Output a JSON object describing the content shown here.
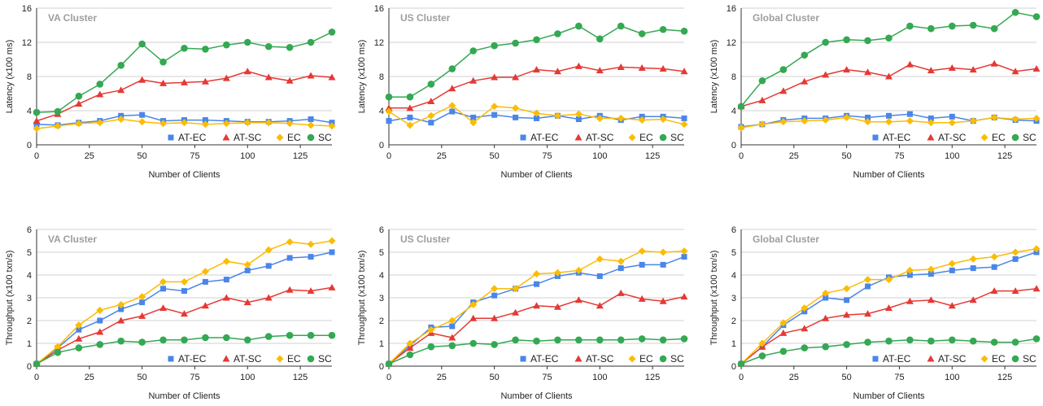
{
  "colors": {
    "AT-EC": "#4a86e8",
    "AT-SC": "#e53935",
    "EC": "#fbbc04",
    "SC": "#34a853"
  },
  "chart_data": [
    {
      "type": "line",
      "title": "VA Cluster",
      "xlabel": "Number of Clients",
      "ylabel": "Latency (x100 ms)",
      "xlim": [
        0,
        140
      ],
      "ylim": [
        0,
        16
      ],
      "xticks": [
        0,
        25,
        50,
        75,
        100,
        125
      ],
      "yticks": [
        0,
        4,
        8,
        12,
        16
      ],
      "legend": "bottom-right",
      "x": [
        0,
        10,
        20,
        30,
        40,
        50,
        60,
        70,
        80,
        90,
        100,
        110,
        120,
        130,
        140
      ],
      "series": [
        {
          "name": "AT-EC",
          "marker": "square",
          "values": [
            2.4,
            2.3,
            2.6,
            2.8,
            3.4,
            3.5,
            2.8,
            2.9,
            2.9,
            2.8,
            2.7,
            2.7,
            2.8,
            3.0,
            2.6
          ]
        },
        {
          "name": "AT-SC",
          "marker": "triangle",
          "values": [
            2.8,
            3.6,
            4.8,
            5.9,
            6.4,
            7.6,
            7.2,
            7.3,
            7.4,
            7.8,
            8.6,
            7.9,
            7.5,
            8.1,
            7.9
          ]
        },
        {
          "name": "EC",
          "marker": "diamond",
          "values": [
            1.9,
            2.2,
            2.5,
            2.6,
            3.0,
            2.7,
            2.5,
            2.6,
            2.4,
            2.5,
            2.6,
            2.6,
            2.5,
            2.3,
            2.2
          ]
        },
        {
          "name": "SC",
          "marker": "circle",
          "values": [
            3.8,
            3.9,
            5.7,
            7.1,
            9.3,
            11.8,
            9.7,
            11.3,
            11.2,
            11.7,
            12.0,
            11.5,
            11.4,
            12.0,
            13.2
          ]
        }
      ]
    },
    {
      "type": "line",
      "title": "US Cluster",
      "xlabel": "Number of Clients",
      "ylabel": "Latency (x100 ms)",
      "xlim": [
        0,
        140
      ],
      "ylim": [
        0,
        16
      ],
      "xticks": [
        0,
        25,
        50,
        75,
        100,
        125
      ],
      "yticks": [
        0,
        4,
        8,
        12,
        16
      ],
      "legend": "bottom-right",
      "x": [
        0,
        10,
        20,
        30,
        40,
        50,
        60,
        70,
        80,
        90,
        100,
        110,
        120,
        130,
        140
      ],
      "series": [
        {
          "name": "AT-EC",
          "marker": "square",
          "values": [
            2.8,
            3.2,
            2.6,
            3.9,
            3.2,
            3.5,
            3.2,
            3.1,
            3.4,
            3.0,
            3.4,
            2.9,
            3.3,
            3.3,
            3.1
          ]
        },
        {
          "name": "AT-SC",
          "marker": "triangle",
          "values": [
            4.3,
            4.3,
            5.1,
            6.6,
            7.5,
            7.9,
            7.9,
            8.8,
            8.6,
            9.2,
            8.7,
            9.1,
            9.0,
            8.9,
            8.6
          ]
        },
        {
          "name": "EC",
          "marker": "diamond",
          "values": [
            3.9,
            2.3,
            3.4,
            4.6,
            2.6,
            4.5,
            4.3,
            3.7,
            3.4,
            3.6,
            3.1,
            3.1,
            2.9,
            3.0,
            2.4
          ]
        },
        {
          "name": "SC",
          "marker": "circle",
          "values": [
            5.6,
            5.6,
            7.1,
            8.9,
            11.0,
            11.6,
            11.9,
            12.3,
            13.0,
            13.9,
            12.4,
            13.9,
            13.0,
            13.5,
            13.3
          ]
        }
      ]
    },
    {
      "type": "line",
      "title": "Global Cluster",
      "xlabel": "Number of Clients",
      "ylabel": "Latency (x100 ms)",
      "xlim": [
        0,
        140
      ],
      "ylim": [
        0,
        16
      ],
      "xticks": [
        0,
        25,
        50,
        75,
        100,
        125
      ],
      "yticks": [
        0,
        4,
        8,
        12,
        16
      ],
      "legend": "bottom-right",
      "x": [
        0,
        10,
        20,
        30,
        40,
        50,
        60,
        70,
        80,
        90,
        100,
        110,
        120,
        130,
        140
      ],
      "series": [
        {
          "name": "AT-EC",
          "marker": "square",
          "values": [
            2.1,
            2.4,
            2.9,
            3.1,
            3.1,
            3.4,
            3.2,
            3.4,
            3.6,
            3.1,
            3.3,
            2.8,
            3.2,
            2.9,
            2.8
          ]
        },
        {
          "name": "AT-SC",
          "marker": "triangle",
          "values": [
            4.5,
            5.2,
            6.3,
            7.4,
            8.2,
            8.8,
            8.5,
            8.0,
            9.4,
            8.7,
            9.0,
            8.8,
            9.5,
            8.6,
            8.9
          ]
        },
        {
          "name": "EC",
          "marker": "diamond",
          "values": [
            2.0,
            2.4,
            2.7,
            2.8,
            2.9,
            3.2,
            2.7,
            2.7,
            2.8,
            2.6,
            2.6,
            2.8,
            3.2,
            3.0,
            3.1
          ]
        },
        {
          "name": "SC",
          "marker": "circle",
          "values": [
            4.5,
            7.5,
            8.8,
            10.5,
            12.0,
            12.3,
            12.2,
            12.5,
            13.9,
            13.6,
            13.9,
            14.0,
            13.6,
            15.5,
            15.0
          ]
        }
      ]
    },
    {
      "type": "line",
      "title": "VA Cluster",
      "xlabel": "Number of Clients",
      "ylabel": "Throughput (x100 txn/s)",
      "xlim": [
        0,
        140
      ],
      "ylim": [
        0,
        6
      ],
      "xticks": [
        0,
        25,
        50,
        75,
        100,
        125
      ],
      "yticks": [
        0,
        1,
        2,
        3,
        4,
        5,
        6
      ],
      "legend": "bottom-right",
      "x": [
        0,
        10,
        20,
        30,
        40,
        50,
        60,
        70,
        80,
        90,
        100,
        110,
        120,
        130,
        140
      ],
      "series": [
        {
          "name": "AT-EC",
          "marker": "square",
          "values": [
            0.1,
            0.8,
            1.6,
            2.0,
            2.5,
            2.8,
            3.4,
            3.3,
            3.7,
            3.8,
            4.2,
            4.4,
            4.75,
            4.8,
            5.0
          ]
        },
        {
          "name": "AT-SC",
          "marker": "triangle",
          "values": [
            0.1,
            0.7,
            1.2,
            1.5,
            2.0,
            2.2,
            2.55,
            2.3,
            2.65,
            3.0,
            2.8,
            3.0,
            3.35,
            3.3,
            3.45
          ]
        },
        {
          "name": "EC",
          "marker": "diamond",
          "values": [
            0.1,
            0.85,
            1.8,
            2.45,
            2.7,
            3.05,
            3.7,
            3.7,
            4.15,
            4.6,
            4.45,
            5.1,
            5.45,
            5.35,
            5.5
          ]
        },
        {
          "name": "SC",
          "marker": "circle",
          "values": [
            0.1,
            0.6,
            0.8,
            0.95,
            1.1,
            1.05,
            1.15,
            1.15,
            1.25,
            1.25,
            1.15,
            1.3,
            1.35,
            1.35,
            1.35
          ]
        }
      ]
    },
    {
      "type": "line",
      "title": "US Cluster",
      "xlabel": "Number of Clients",
      "ylabel": "Throughput (x100 txn/s)",
      "xlim": [
        0,
        140
      ],
      "ylim": [
        0,
        6
      ],
      "xticks": [
        0,
        25,
        50,
        75,
        100,
        125
      ],
      "yticks": [
        0,
        1,
        2,
        3,
        4,
        5,
        6
      ],
      "legend": "bottom-right",
      "x": [
        0,
        10,
        20,
        30,
        40,
        50,
        60,
        70,
        80,
        90,
        100,
        110,
        120,
        130,
        140
      ],
      "series": [
        {
          "name": "AT-EC",
          "marker": "square",
          "values": [
            0.1,
            0.9,
            1.7,
            1.75,
            2.8,
            3.1,
            3.4,
            3.6,
            3.95,
            4.1,
            3.95,
            4.3,
            4.45,
            4.45,
            4.8
          ]
        },
        {
          "name": "AT-SC",
          "marker": "triangle",
          "values": [
            0.1,
            0.8,
            1.45,
            1.25,
            2.1,
            2.1,
            2.35,
            2.65,
            2.6,
            2.9,
            2.65,
            3.2,
            2.95,
            2.85,
            3.05
          ]
        },
        {
          "name": "EC",
          "marker": "diamond",
          "values": [
            0.1,
            1.0,
            1.6,
            2.0,
            2.7,
            3.4,
            3.4,
            4.05,
            4.1,
            4.2,
            4.7,
            4.6,
            5.05,
            5.0,
            5.05
          ]
        },
        {
          "name": "SC",
          "marker": "circle",
          "values": [
            0.1,
            0.5,
            0.85,
            0.9,
            1.0,
            0.95,
            1.15,
            1.1,
            1.15,
            1.15,
            1.15,
            1.15,
            1.2,
            1.15,
            1.2
          ]
        }
      ]
    },
    {
      "type": "line",
      "title": "Global Cluster",
      "xlabel": "Number of Clients",
      "ylabel": "Throughput (x100 txn/s)",
      "xlim": [
        0,
        140
      ],
      "ylim": [
        0,
        6
      ],
      "xticks": [
        0,
        25,
        50,
        75,
        100,
        125
      ],
      "yticks": [
        0,
        1,
        2,
        3,
        4,
        5,
        6
      ],
      "legend": "bottom-right",
      "x": [
        0,
        10,
        20,
        30,
        40,
        50,
        60,
        70,
        80,
        90,
        100,
        110,
        120,
        130,
        140
      ],
      "series": [
        {
          "name": "AT-EC",
          "marker": "square",
          "values": [
            0.1,
            0.85,
            1.8,
            2.4,
            3.0,
            2.9,
            3.5,
            3.9,
            4.0,
            4.05,
            4.2,
            4.3,
            4.35,
            4.7,
            5.0
          ]
        },
        {
          "name": "AT-SC",
          "marker": "triangle",
          "values": [
            0.1,
            0.85,
            1.45,
            1.65,
            2.1,
            2.25,
            2.3,
            2.55,
            2.85,
            2.9,
            2.65,
            2.9,
            3.3,
            3.3,
            3.4
          ]
        },
        {
          "name": "EC",
          "marker": "diamond",
          "values": [
            0.1,
            1.0,
            1.9,
            2.55,
            3.2,
            3.4,
            3.8,
            3.8,
            4.2,
            4.25,
            4.5,
            4.7,
            4.8,
            5.0,
            5.15
          ]
        },
        {
          "name": "SC",
          "marker": "circle",
          "values": [
            0.1,
            0.45,
            0.65,
            0.8,
            0.85,
            0.95,
            1.05,
            1.1,
            1.15,
            1.1,
            1.15,
            1.1,
            1.05,
            1.05,
            1.2
          ]
        }
      ]
    }
  ]
}
